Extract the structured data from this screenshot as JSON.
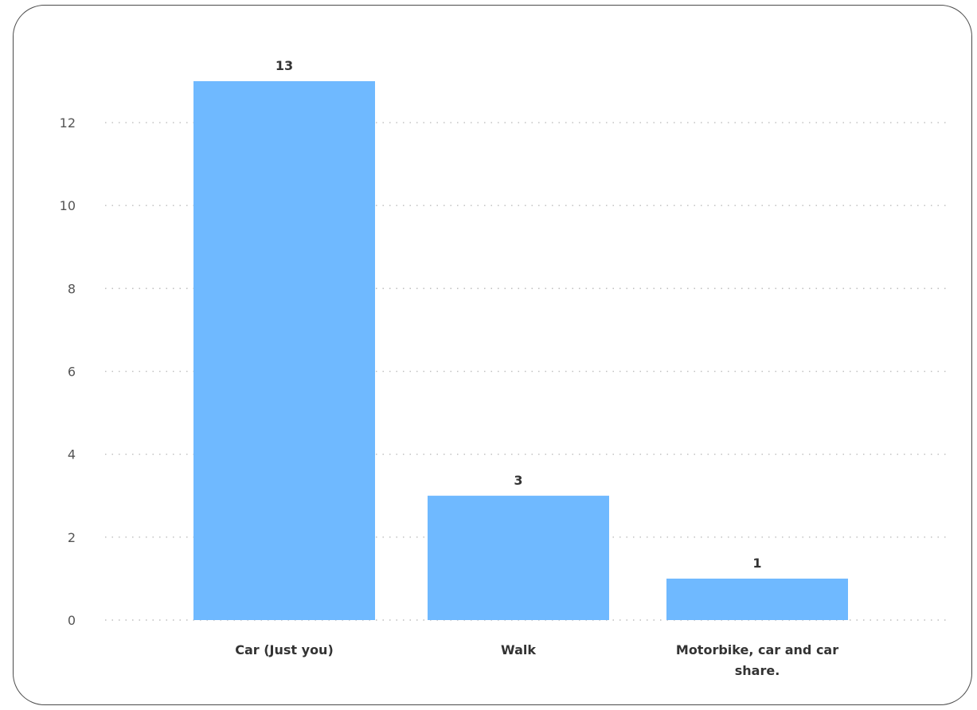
{
  "chart_data": {
    "type": "bar",
    "title": "",
    "xlabel": "",
    "ylabel": "",
    "categories": [
      "Car (Just you)",
      "Walk",
      "Motorbike, car and car share."
    ],
    "category_lines": [
      [
        "Car (Just you)"
      ],
      [
        "Walk"
      ],
      [
        "Motorbike, car and car",
        "share."
      ]
    ],
    "values": [
      13,
      3,
      1
    ],
    "data_labels": [
      "13",
      "3",
      "1"
    ],
    "ylim": [
      0,
      13
    ],
    "yticks": [
      0,
      2,
      4,
      6,
      8,
      10,
      12
    ],
    "grid": true,
    "legend": "none",
    "bar_color": "#6fb9ff"
  }
}
